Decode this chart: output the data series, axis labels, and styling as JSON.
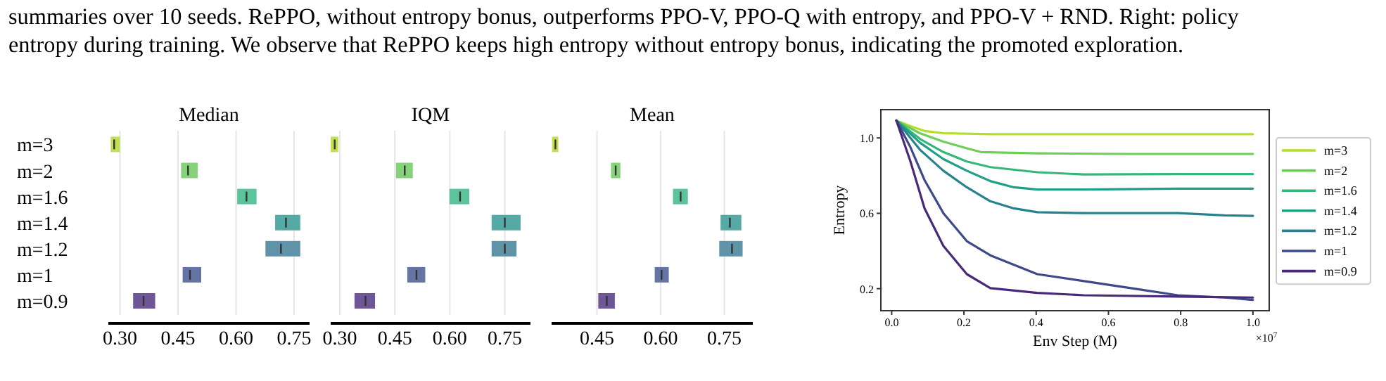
{
  "chart_data": [
    {
      "type": "box",
      "orientation": "horizontal",
      "title": "Median",
      "categories": [
        "m=3",
        "m=2",
        "m=1.6",
        "m=1.4",
        "m=1.2",
        "m=1",
        "m=0.9"
      ],
      "boxes": [
        {
          "low": 0.276,
          "q1": 0.276,
          "median": 0.285,
          "q3": 0.3,
          "high": 0.3
        },
        {
          "low": 0.458,
          "q1": 0.458,
          "median": 0.476,
          "q3": 0.501,
          "high": 0.501
        },
        {
          "low": 0.603,
          "q1": 0.603,
          "median": 0.627,
          "q3": 0.653,
          "high": 0.653
        },
        {
          "low": 0.701,
          "q1": 0.701,
          "median": 0.729,
          "q3": 0.766,
          "high": 0.766
        },
        {
          "low": 0.676,
          "q1": 0.676,
          "median": 0.716,
          "q3": 0.766,
          "high": 0.766
        },
        {
          "low": 0.462,
          "q1": 0.462,
          "median": 0.481,
          "q3": 0.51,
          "high": 0.51
        },
        {
          "low": 0.334,
          "q1": 0.334,
          "median": 0.361,
          "q3": 0.391,
          "high": 0.391
        }
      ],
      "colors": [
        "#c2df56",
        "#86d27a",
        "#5cc49a",
        "#55aaa5",
        "#5f93a8",
        "#6475a5",
        "#6e5697"
      ],
      "xlim": [
        0.27,
        0.79
      ],
      "xticks": [
        {
          "value": 0.3,
          "label": "0.30"
        },
        {
          "value": 0.45,
          "label": "0.45"
        },
        {
          "value": 0.6,
          "label": "0.60"
        },
        {
          "value": 0.75,
          "label": "0.75"
        }
      ],
      "grid": "x",
      "annotations": [
        "summaries over 10 seeds. RePPO, without entropy bonus, outperforms PPO-V, PPO-Q with entropy, and PPO-V + RND. Right: policy",
        "entropy during training. We observe that RePPO keeps high entropy without entropy bonus, indicating the promoted exploration."
      ]
    },
    {
      "type": "box",
      "orientation": "horizontal",
      "title": "IQM",
      "categories": [
        null,
        null,
        null,
        null,
        null,
        null,
        null
      ],
      "tick_labels": "x",
      "boxes": [
        {
          "low": 0.275,
          "q1": 0.275,
          "median": 0.286,
          "q3": 0.296,
          "high": 0.296
        },
        {
          "low": 0.453,
          "q1": 0.453,
          "median": 0.477,
          "q3": 0.499,
          "high": 0.499
        },
        {
          "low": 0.599,
          "q1": 0.599,
          "median": 0.628,
          "q3": 0.653,
          "high": 0.653
        },
        {
          "low": 0.714,
          "q1": 0.714,
          "median": 0.75,
          "q3": 0.793,
          "high": 0.793
        },
        {
          "low": 0.714,
          "q1": 0.714,
          "median": 0.75,
          "q3": 0.782,
          "high": 0.782
        },
        {
          "low": 0.484,
          "q1": 0.484,
          "median": 0.509,
          "q3": 0.533,
          "high": 0.533
        },
        {
          "low": 0.34,
          "q1": 0.34,
          "median": 0.37,
          "q3": 0.396,
          "high": 0.396
        }
      ],
      "colors": [
        "#c2df56",
        "#86d27a",
        "#5cc49a",
        "#55aaa5",
        "#5f93a8",
        "#6475a5",
        "#6e5697"
      ],
      "xlim": [
        0.275,
        0.82
      ],
      "xticks": [
        {
          "value": 0.3,
          "label": "0.30"
        },
        {
          "value": 0.45,
          "label": "0.45"
        },
        {
          "value": 0.6,
          "label": "0.60"
        },
        {
          "value": 0.75,
          "label": "0.75"
        }
      ],
      "grid": "x"
    },
    {
      "type": "box",
      "orientation": "horizontal",
      "title": "Mean",
      "categories": [
        null,
        null,
        null,
        null,
        null,
        null,
        null
      ],
      "tick_labels": "x",
      "boxes": [
        {
          "low": 0.344,
          "q1": 0.344,
          "median": 0.352,
          "q3": 0.359,
          "high": 0.359
        },
        {
          "low": 0.483,
          "q1": 0.483,
          "median": 0.494,
          "q3": 0.505,
          "high": 0.505
        },
        {
          "low": 0.629,
          "q1": 0.629,
          "median": 0.647,
          "q3": 0.664,
          "high": 0.664
        },
        {
          "low": 0.741,
          "q1": 0.741,
          "median": 0.763,
          "q3": 0.79,
          "high": 0.79
        },
        {
          "low": 0.738,
          "q1": 0.738,
          "median": 0.768,
          "q3": 0.793,
          "high": 0.793
        },
        {
          "low": 0.586,
          "q1": 0.586,
          "median": 0.602,
          "q3": 0.619,
          "high": 0.619
        },
        {
          "low": 0.453,
          "q1": 0.453,
          "median": 0.473,
          "q3": 0.492,
          "high": 0.492
        }
      ],
      "colors": [
        "#c2df56",
        "#86d27a",
        "#5cc49a",
        "#55aaa5",
        "#5f93a8",
        "#6475a5",
        "#6e5697"
      ],
      "xlim": [
        0.343,
        0.817
      ],
      "xticks": [
        {
          "value": 0.45,
          "label": "0.45"
        },
        {
          "value": 0.6,
          "label": "0.60"
        },
        {
          "value": 0.75,
          "label": "0.75"
        }
      ],
      "grid": "x"
    },
    {
      "type": "line",
      "xlabel": "Env Step (M)",
      "ylabel": "Entropy",
      "legend": "right",
      "annotations": [
        "×10$^{7}$"
      ],
      "xlim": [
        -0.03,
        1.045
      ],
      "xticks": [
        {
          "value": 0,
          "label": "0.0"
        },
        {
          "value": 0.2,
          "label": "0.2"
        },
        {
          "value": 0.4,
          "label": "0.4"
        },
        {
          "value": 0.6,
          "label": "0.6"
        },
        {
          "value": 0.8,
          "label": "0.8"
        },
        {
          "value": 1,
          "label": "1.0"
        }
      ],
      "ylim": [
        0.083,
        1.15
      ],
      "yticks": [
        {
          "value": 0.2,
          "label": "0.2"
        },
        {
          "value": 0.6,
          "label": "0.6"
        },
        {
          "value": 1,
          "label": "1.0"
        }
      ],
      "series": [
        {
          "name": "m=3",
          "color": "#b5de2b",
          "x": [
            0.013,
            0.052,
            0.091,
            0.143,
            0.273,
            0.532,
            0.792,
            1.0
          ],
          "values": [
            1.092,
            1.062,
            1.037,
            1.025,
            1.02,
            1.02,
            1.02,
            1.02
          ]
        },
        {
          "name": "m=2",
          "color": "#6ece58",
          "x": [
            0.013,
            0.078,
            0.143,
            0.208,
            0.247,
            0.403,
            0.662,
            1.0
          ],
          "values": [
            1.092,
            1.025,
            0.98,
            0.945,
            0.925,
            0.918,
            0.915,
            0.915
          ]
        },
        {
          "name": "m=1.6",
          "color": "#35b779",
          "x": [
            0.013,
            0.078,
            0.143,
            0.208,
            0.273,
            0.403,
            0.532,
            0.792,
            1.0
          ],
          "values": [
            1.092,
            0.995,
            0.925,
            0.875,
            0.845,
            0.818,
            0.806,
            0.808,
            0.808
          ]
        },
        {
          "name": "m=1.4",
          "color": "#1f9e89",
          "x": [
            0.013,
            0.078,
            0.143,
            0.208,
            0.273,
            0.338,
            0.403,
            0.532,
            0.792,
            1.0
          ],
          "values": [
            1.092,
            0.975,
            0.888,
            0.826,
            0.771,
            0.738,
            0.726,
            0.726,
            0.731,
            0.731
          ]
        },
        {
          "name": "m=1.2",
          "color": "#26828e",
          "x": [
            0.013,
            0.078,
            0.143,
            0.208,
            0.273,
            0.338,
            0.403,
            0.532,
            0.792,
            0.922,
            1.0
          ],
          "values": [
            1.092,
            0.938,
            0.826,
            0.738,
            0.664,
            0.626,
            0.606,
            0.601,
            0.601,
            0.589,
            0.586
          ]
        },
        {
          "name": "m=1",
          "color": "#3e4989",
          "x": [
            0.013,
            0.052,
            0.091,
            0.143,
            0.208,
            0.273,
            0.403,
            0.532,
            0.662,
            0.792,
            0.922,
            1.0
          ],
          "values": [
            1.092,
            0.95,
            0.776,
            0.601,
            0.452,
            0.377,
            0.277,
            0.24,
            0.203,
            0.165,
            0.153,
            0.14
          ]
        },
        {
          "name": "m=0.9",
          "color": "#482878",
          "x": [
            0.013,
            0.052,
            0.091,
            0.143,
            0.208,
            0.273,
            0.403,
            0.532,
            0.792,
            1.0
          ],
          "values": [
            1.092,
            0.875,
            0.626,
            0.427,
            0.277,
            0.203,
            0.178,
            0.165,
            0.158,
            0.153
          ]
        }
      ]
    }
  ]
}
